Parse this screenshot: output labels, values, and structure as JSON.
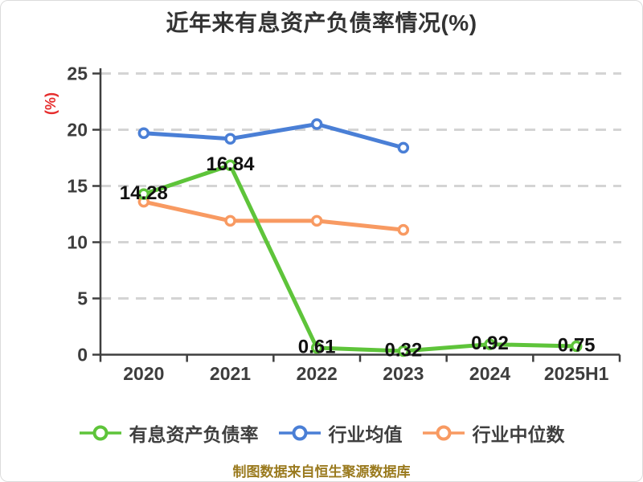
{
  "title": "近年来有息资产负债率情况(%)",
  "footer": "制图数据来自恒生聚源数据库",
  "colors": {
    "title": "#333333",
    "axis": "#3f3f3f",
    "grid": "#d4d4d4",
    "tick_label": "#3d3d3d",
    "ylabel": "#e62e2e",
    "point_label": "#111111",
    "footer": "#9a7a1e",
    "marker_fill": "#ffffff"
  },
  "legend": {
    "items": [
      {
        "label": "有息资产负债率",
        "color": "#5ec43a"
      },
      {
        "label": "行业均值",
        "color": "#4a7fd6"
      },
      {
        "label": "行业中位数",
        "color": "#f89a62"
      }
    ]
  },
  "chart_data": {
    "type": "line",
    "title": "近年来有息资产负债率情况(%)",
    "ylabel": "(%)",
    "xlabel": "",
    "categories": [
      "2020",
      "2021",
      "2022",
      "2023",
      "2024",
      "2025H1"
    ],
    "ylim": [
      0,
      25
    ],
    "ytick_step": 5,
    "yticks": [
      0,
      5,
      10,
      15,
      20,
      25
    ],
    "grid": "horizontal-dashed",
    "legend_position": "bottom",
    "series": [
      {
        "name": "有息资产负债率",
        "color": "#5ec43a",
        "values": [
          14.28,
          16.84,
          0.61,
          0.32,
          0.92,
          0.75
        ],
        "labeled": true
      },
      {
        "name": "行业均值",
        "color": "#4a7fd6",
        "values": [
          19.7,
          19.2,
          20.5,
          18.4,
          null,
          null
        ],
        "labeled": false
      },
      {
        "name": "行业中位数",
        "color": "#f89a62",
        "values": [
          13.6,
          11.9,
          11.9,
          11.1,
          null,
          null
        ],
        "labeled": false
      }
    ]
  }
}
